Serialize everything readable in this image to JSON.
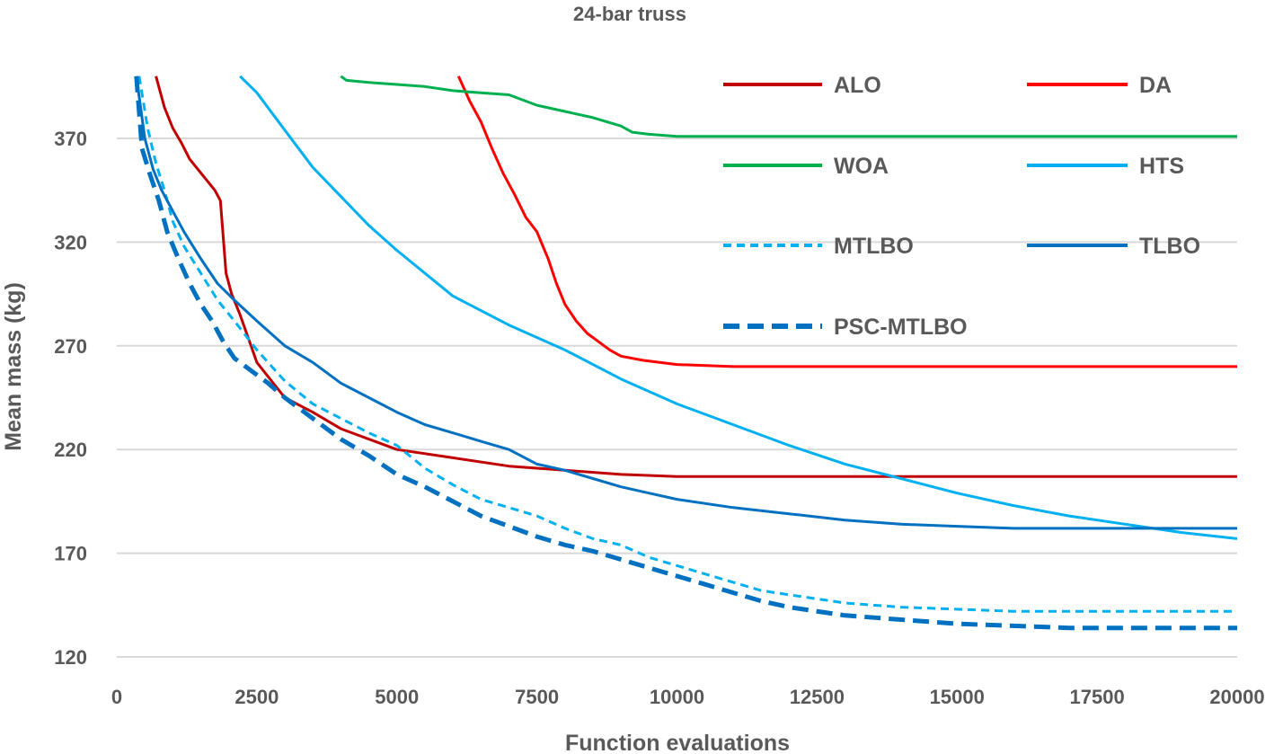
{
  "chart_data": {
    "type": "line",
    "title": "24-bar  truss",
    "xlabel": "Function evaluations",
    "ylabel": "Mean mass (kg)",
    "xlim": [
      0,
      20000
    ],
    "ylim": [
      120,
      400
    ],
    "xticks": [
      0,
      2500,
      5000,
      7500,
      10000,
      12500,
      15000,
      17500,
      20000
    ],
    "yticks": [
      120,
      170,
      220,
      270,
      320,
      370
    ],
    "xtick_labels": [
      "0",
      "2500",
      "5000",
      "7500",
      "10000",
      "12500",
      "15000",
      "17500",
      "20000"
    ],
    "ytick_labels": [
      "120",
      "170",
      "220",
      "270",
      "320",
      "370"
    ],
    "grid": "horizontal",
    "legend_position": "top-right",
    "series": [
      {
        "name": "ALO",
        "color": "#c00000",
        "dash": "solid",
        "x": [
          700,
          850,
          1000,
          1150,
          1300,
          1450,
          1600,
          1750,
          1850,
          1950,
          2050,
          2200,
          2500,
          3000,
          3500,
          4000,
          5000,
          6000,
          7000,
          8000,
          9000,
          10000,
          11000,
          12000,
          14000,
          16000,
          18000,
          20000
        ],
        "y": [
          400,
          385,
          375,
          368,
          360,
          355,
          350,
          345,
          340,
          305,
          295,
          285,
          262,
          245,
          238,
          230,
          220,
          216,
          212,
          210,
          208,
          207,
          207,
          207,
          207,
          207,
          207,
          207
        ]
      },
      {
        "name": "DA",
        "color": "#ff0000",
        "dash": "solid",
        "x": [
          6100,
          6300,
          6500,
          6700,
          6900,
          7100,
          7300,
          7500,
          7700,
          7850,
          8000,
          8200,
          8400,
          8600,
          8800,
          9000,
          9400,
          10000,
          11000,
          12000,
          14000,
          16000,
          18000,
          20000
        ],
        "y": [
          400,
          388,
          378,
          365,
          353,
          343,
          332,
          325,
          312,
          300,
          290,
          282,
          276,
          272,
          268,
          265,
          263,
          261,
          260,
          260,
          260,
          260,
          260,
          260
        ]
      },
      {
        "name": "WOA",
        "color": "#00b050",
        "dash": "solid",
        "x": [
          4000,
          4100,
          4500,
          5000,
          5500,
          6000,
          6500,
          7000,
          7500,
          8000,
          8500,
          9000,
          9200,
          9500,
          10000,
          11000,
          12000,
          14000,
          16000,
          18000,
          20000
        ],
        "y": [
          400,
          398,
          397,
          396,
          395,
          393,
          392,
          391,
          386,
          383,
          380,
          376,
          373,
          372,
          371,
          371,
          371,
          371,
          371,
          371,
          371
        ]
      },
      {
        "name": "HTS",
        "color": "#00b0f0",
        "dash": "solid",
        "x": [
          2200,
          2500,
          3000,
          3500,
          4000,
          4500,
          5000,
          6000,
          7000,
          8000,
          9000,
          10000,
          11000,
          12000,
          13000,
          14000,
          15000,
          16000,
          17000,
          18000,
          19000,
          20000
        ],
        "y": [
          400,
          392,
          374,
          356,
          342,
          328,
          316,
          294,
          280,
          268,
          254,
          242,
          232,
          222,
          213,
          206,
          199,
          193,
          188,
          184,
          180,
          177
        ]
      },
      {
        "name": "MTLBO",
        "color": "#00b0f0",
        "dash": "dash",
        "x": [
          400,
          550,
          700,
          850,
          1000,
          1200,
          1500,
          1800,
          2100,
          2500,
          3000,
          3500,
          4000,
          4500,
          5000,
          5500,
          6000,
          6500,
          7000,
          7500,
          8000,
          8500,
          9000,
          9500,
          10000,
          10500,
          11000,
          11500,
          12000,
          13000,
          14000,
          15000,
          16000,
          17000,
          18000,
          19000,
          20000
        ],
        "y": [
          400,
          375,
          358,
          345,
          330,
          318,
          305,
          292,
          282,
          268,
          253,
          242,
          235,
          228,
          222,
          211,
          203,
          196,
          192,
          188,
          182,
          177,
          174,
          168,
          164,
          160,
          156,
          152,
          150,
          146,
          144,
          143,
          142,
          142,
          142,
          142,
          142
        ]
      },
      {
        "name": "TLBO",
        "color": "#0070c0",
        "dash": "solid",
        "x": [
          350,
          500,
          650,
          800,
          1000,
          1200,
          1500,
          1800,
          2100,
          2500,
          3000,
          3500,
          4000,
          4500,
          5000,
          5500,
          6000,
          6500,
          7000,
          7500,
          8000,
          8500,
          9000,
          9500,
          10000,
          11000,
          12000,
          13000,
          14000,
          15000,
          16000,
          17000,
          18000,
          19000,
          20000
        ],
        "y": [
          400,
          370,
          355,
          345,
          335,
          325,
          312,
          300,
          292,
          282,
          270,
          262,
          252,
          245,
          238,
          232,
          228,
          224,
          220,
          213,
          210,
          206,
          202,
          199,
          196,
          192,
          189,
          186,
          184,
          183,
          182,
          182,
          182,
          182,
          182
        ]
      },
      {
        "name": "PSC-MTLBO",
        "color": "#0070c0",
        "dash": "longdash",
        "x": [
          350,
          450,
          600,
          750,
          900,
          1100,
          1300,
          1500,
          1700,
          1900,
          2100,
          2400,
          2700,
          3000,
          3500,
          4000,
          4500,
          5000,
          5500,
          6000,
          6500,
          7000,
          7500,
          8000,
          8500,
          9000,
          9500,
          10000,
          10500,
          11000,
          11500,
          12000,
          13000,
          14000,
          15000,
          16000,
          17000,
          18000,
          19000,
          20000
        ],
        "y": [
          400,
          365,
          352,
          340,
          325,
          312,
          300,
          290,
          282,
          272,
          264,
          258,
          252,
          245,
          235,
          225,
          217,
          208,
          202,
          195,
          188,
          183,
          178,
          174,
          171,
          167,
          163,
          159,
          155,
          151,
          147,
          144,
          140,
          138,
          136,
          135,
          134,
          134,
          134,
          134
        ]
      }
    ]
  }
}
